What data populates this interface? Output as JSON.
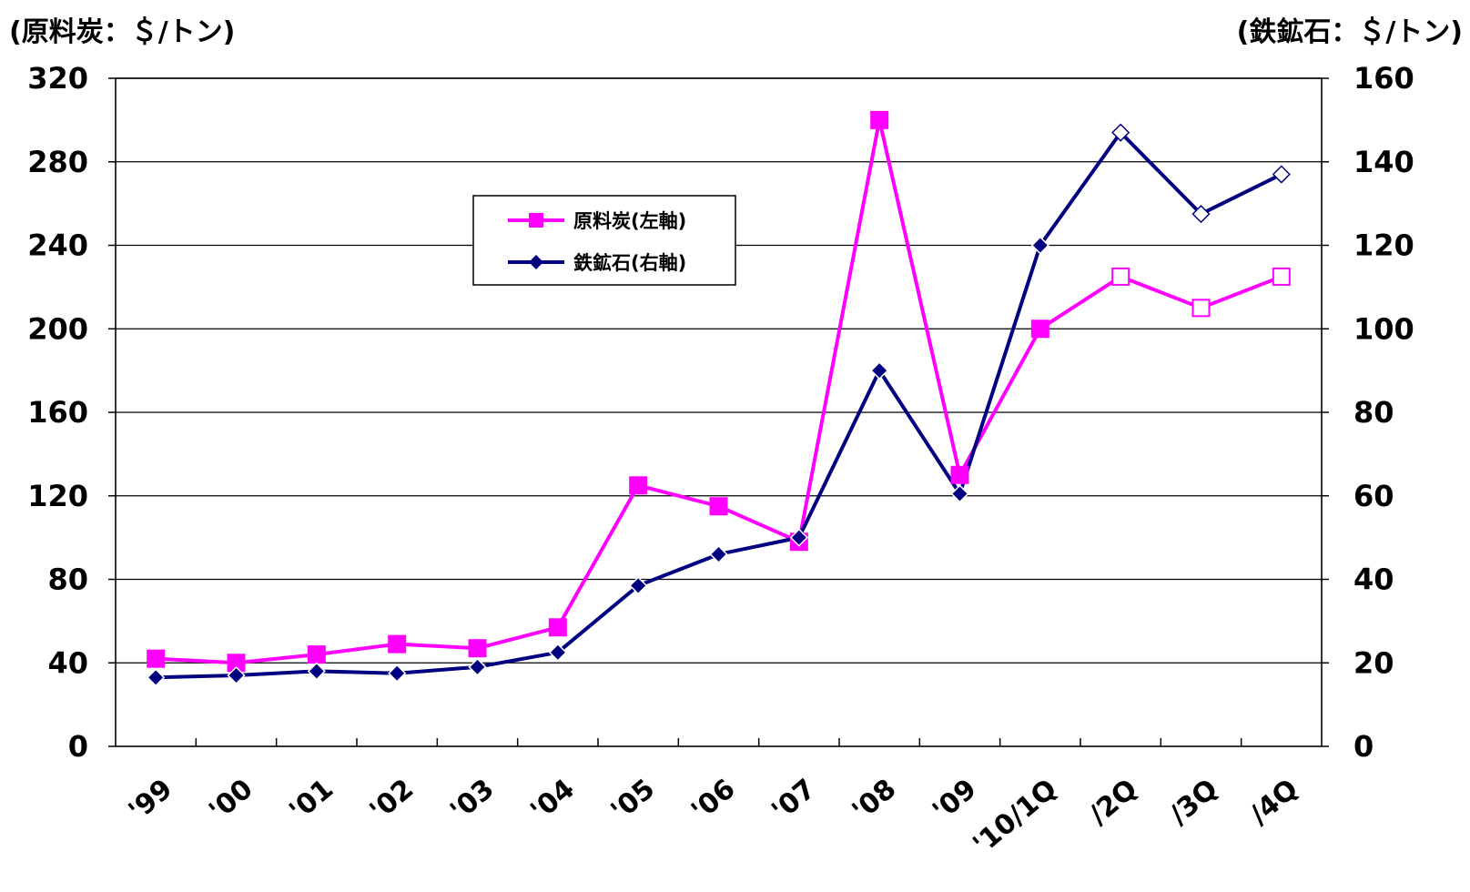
{
  "chart_data": {
    "type": "line",
    "left_unit": "(原料炭：＄/トン)",
    "right_unit": "(鉄鉱石：＄/トン)",
    "categories": [
      "'99",
      "'00",
      "'01",
      "'02",
      "'03",
      "'04",
      "'05",
      "'06",
      "'07",
      "'08",
      "'09",
      "'10/1Q",
      "/2Q",
      "/3Q",
      "/4Q"
    ],
    "left_axis": {
      "min": 0,
      "max": 320,
      "ticks": [
        "0",
        "40",
        "80",
        "120",
        "160",
        "200",
        "240",
        "280",
        "320"
      ]
    },
    "right_axis": {
      "min": 0,
      "max": 160,
      "ticks": [
        "0",
        "20",
        "40",
        "60",
        "80",
        "100",
        "120",
        "140",
        "160"
      ]
    },
    "grid": true,
    "legend_position": "upper-center",
    "series": [
      {
        "name": "原料炭(左軸)",
        "axis": "left",
        "color": "#ff00ff",
        "marker": "square",
        "values": [
          42,
          40,
          44,
          49,
          47,
          57,
          125,
          115,
          98,
          300,
          130,
          200,
          225,
          210,
          225
        ],
        "hollow_from_index": 12
      },
      {
        "name": "鉄鉱石(右軸)",
        "axis": "right",
        "color": "#000080",
        "marker": "diamond",
        "values": [
          16.5,
          17,
          18,
          17.5,
          19,
          22.5,
          38.5,
          46,
          50,
          90,
          60.5,
          120,
          147,
          127.5,
          137
        ],
        "hollow_from_index": 12
      }
    ]
  }
}
